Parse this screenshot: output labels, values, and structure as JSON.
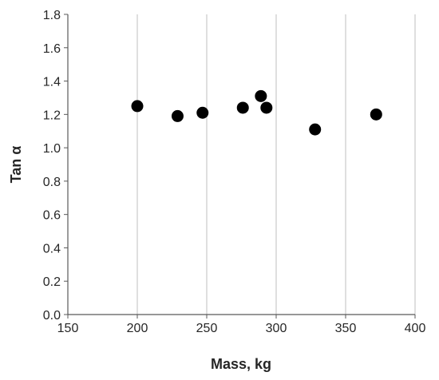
{
  "chart_data": {
    "type": "scatter",
    "title": "",
    "xlabel": "Mass,  kg",
    "ylabel": "Tan α",
    "xlim": [
      150,
      400
    ],
    "ylim": [
      0,
      1.8
    ],
    "x_ticks": [
      "150",
      "200",
      "250",
      "300",
      "350",
      "400"
    ],
    "y_ticks": [
      "0.0",
      "0.2",
      "0.4",
      "0.6",
      "0.8",
      "1.0",
      "1.2",
      "1.4",
      "1.6",
      "1.8"
    ],
    "grid": "vertical",
    "marker_color": "#000000",
    "grid_color": "#bfbfbf",
    "points": [
      {
        "x": 200,
        "y": 1.25
      },
      {
        "x": 229,
        "y": 1.19
      },
      {
        "x": 247,
        "y": 1.21
      },
      {
        "x": 276,
        "y": 1.24
      },
      {
        "x": 289,
        "y": 1.31
      },
      {
        "x": 293,
        "y": 1.24
      },
      {
        "x": 328,
        "y": 1.11
      },
      {
        "x": 372,
        "y": 1.2
      }
    ]
  }
}
